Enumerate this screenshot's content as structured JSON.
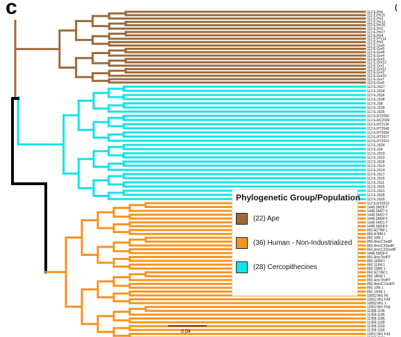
{
  "figure": {
    "panel_label": "c",
    "top_right_mark": "(",
    "scale_bar_label": "0.04"
  },
  "legend": {
    "title": "Phylogenetic Group/Population",
    "entries": [
      {
        "label": "(22) Ape",
        "color": "#9b6a3a"
      },
      {
        "label": "(36) Human - Non-Industrialized",
        "color": "#f7941d"
      },
      {
        "label": "(28) Cercopithecines",
        "color": "#12e3e8"
      }
    ]
  },
  "colors": {
    "ape": "#9b6a3a",
    "human": "#f7941d",
    "cerco": "#12e3e8",
    "root": "#000000"
  },
  "groups": {
    "ape": {
      "color_key": "ape",
      "tips": [
        "112 E.Ptr6",
        "112 E.Ptr15",
        "112 E.Ptr3",
        "112 E.Ptr13",
        "112 E.Ptr16",
        "112 E.Ptr1",
        "112 E.Ptr17",
        "112 E.Ptr4",
        "112 E.PTr14",
        "112 E.Ptr5",
        "112 E.Gor9",
        "112 E.Gor5",
        "112 E.Gor8",
        "112 E.Gor4",
        "112 E.Gor3",
        "112 E.Gor12",
        "112 E.Gor1",
        "112 E.Gor11",
        "112 E.Gor2",
        "112 E.Gor10",
        "112 E.Gor7",
        "112 E.Gor6"
      ]
    },
    "cerco": {
      "color_key": "cerco",
      "tips": [
        "112 E.JS37",
        "112 E.JS34",
        "112 E.JS36",
        "112 E.JS38",
        "112 E.JS8",
        "112 E.JS39",
        "112 E.JS35",
        "112 E.RT2050",
        "112 E.RC2009",
        "112 E.RT2136",
        "112 E.RT2048",
        "112 E.RT2004",
        "112 E.RT2017",
        "112 E.RT2019",
        "112 E.JS24",
        "112 E.JS4",
        "112 E.JS33",
        "112 E.JS19",
        "112 E.JS18",
        "112 E.JS13",
        "112 E.JS14",
        "112 E.JS17",
        "112 E.JS15",
        "112 E.JS11",
        "112 E.JS25",
        "112 E.JS31",
        "112 E.JS28",
        "112 E.JS30"
      ]
    },
    "human": {
      "color_key": "human",
      "tips": [
        "112 E.RT2013",
        "1448.SM26 F",
        "1448.SM27 F",
        "1448.SM31 F",
        "1448.SM34 F",
        "1448.SM21 F",
        "1448.SM18 F",
        "850.A279M.1",
        "850.A78M.1",
        "850.10M.1",
        "850.AmzCSedtF",
        "850.AmzC3SedtF",
        "850.AmzC20SedtF",
        "1448.SM29 F",
        "850.AmzTedFF",
        "850.118M.1",
        "850.114M.1",
        "850.128M.1",
        "850.A273M.1",
        "850.185M.1",
        "850.AmzTedFF",
        "850.AmzC11edFF",
        "850.10M.1",
        "850.160M.1",
        "10052.MG F6",
        "10052.MG F48",
        "10052.MG 1",
        "10052.MG F58",
        "11358.1146",
        "11358.1185",
        "11358.1186",
        "11358.1188",
        "11358.1150",
        "11358.1158",
        "10052.MG F49",
        "11358.1184"
      ]
    }
  }
}
